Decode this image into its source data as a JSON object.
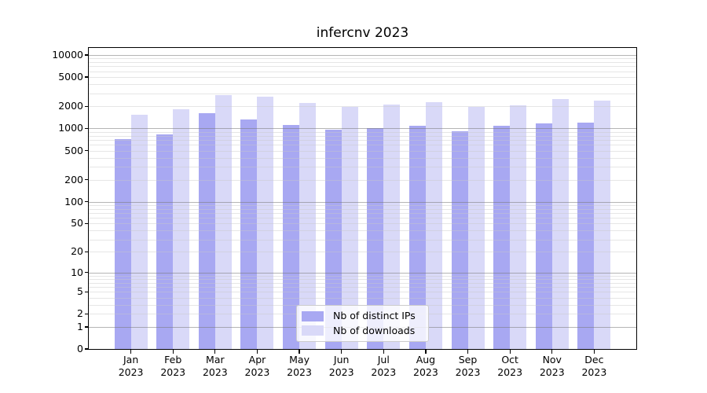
{
  "chart_data": {
    "type": "bar",
    "title": "infercnv 2023",
    "categories": [
      "Jan",
      "Feb",
      "Mar",
      "Apr",
      "May",
      "Jun",
      "Jul",
      "Aug",
      "Sep",
      "Oct",
      "Nov",
      "Dec"
    ],
    "year_label": "2023",
    "series": [
      {
        "name": "Nb of distinct IPs",
        "color_key": "distinct_ips",
        "values": [
          720,
          840,
          1600,
          1340,
          1130,
          970,
          1020,
          1100,
          920,
          1090,
          1160,
          1200
        ]
      },
      {
        "name": "Nb of downloads",
        "color_key": "downloads",
        "values": [
          1540,
          1850,
          2850,
          2720,
          2250,
          1950,
          2130,
          2280,
          1990,
          2060,
          2540,
          2370
        ]
      }
    ],
    "yscale": "log1p",
    "ylim": [
      0,
      12800
    ],
    "yticks": [
      {
        "value": 0,
        "label": "0"
      },
      {
        "value": 1,
        "label": "1"
      },
      {
        "value": 2,
        "label": "2"
      },
      {
        "value": 5,
        "label": "5"
      },
      {
        "value": 10,
        "label": "10"
      },
      {
        "value": 20,
        "label": "20"
      },
      {
        "value": 50,
        "label": "50"
      },
      {
        "value": 100,
        "label": "100"
      },
      {
        "value": 200,
        "label": "200"
      },
      {
        "value": 500,
        "label": "500"
      },
      {
        "value": 1000,
        "label": "1000"
      },
      {
        "value": 2000,
        "label": "2000"
      },
      {
        "value": 5000,
        "label": "5000"
      },
      {
        "value": 10000,
        "label": "10000"
      }
    ],
    "grid": "major-and-minor",
    "legend_position": "lower-center"
  },
  "colors": {
    "distinct_ips": "#a8a8f2",
    "downloads": "#d9d9f8",
    "grid_major": "#b0b0b0",
    "grid_minor": "#e7e7e7",
    "axis": "#000000",
    "legend_border": "#cccccc"
  }
}
